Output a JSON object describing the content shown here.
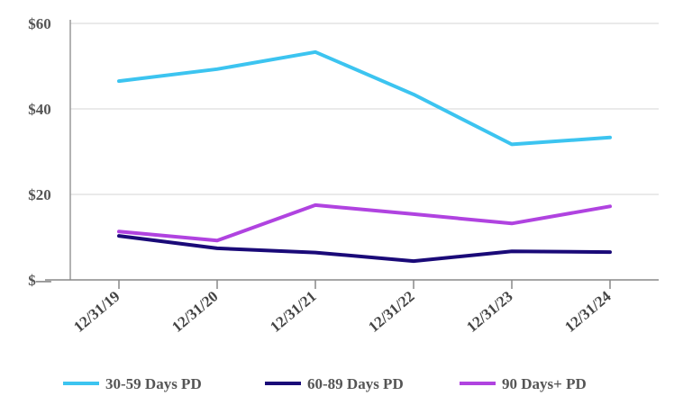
{
  "chart_data": {
    "type": "line",
    "title": "",
    "xlabel": "",
    "ylabel": "",
    "categories": [
      "12/31/19",
      "12/31/20",
      "12/31/21",
      "12/31/22",
      "12/31/23",
      "12/31/24"
    ],
    "ylim": [
      0,
      60
    ],
    "yticks": [
      {
        "value": 0,
        "label": "$—"
      },
      {
        "value": 20,
        "label": "$20"
      },
      {
        "value": 40,
        "label": "$40"
      },
      {
        "value": 60,
        "label": "$60"
      }
    ],
    "grid": true,
    "legend_position": "bottom",
    "series": [
      {
        "name": "30-59 Days PD",
        "color": "#3CC4F0",
        "values": [
          46.5,
          49.3,
          53.3,
          43.4,
          31.7,
          33.3
        ]
      },
      {
        "name": "60-89 Days PD",
        "color": "#1A0A78",
        "values": [
          10.3,
          7.4,
          6.4,
          4.4,
          6.7,
          6.5
        ]
      },
      {
        "name": "90 Days+ PD",
        "color": "#B043E0",
        "values": [
          11.3,
          9.2,
          17.5,
          15.4,
          13.2,
          17.2
        ]
      }
    ]
  }
}
